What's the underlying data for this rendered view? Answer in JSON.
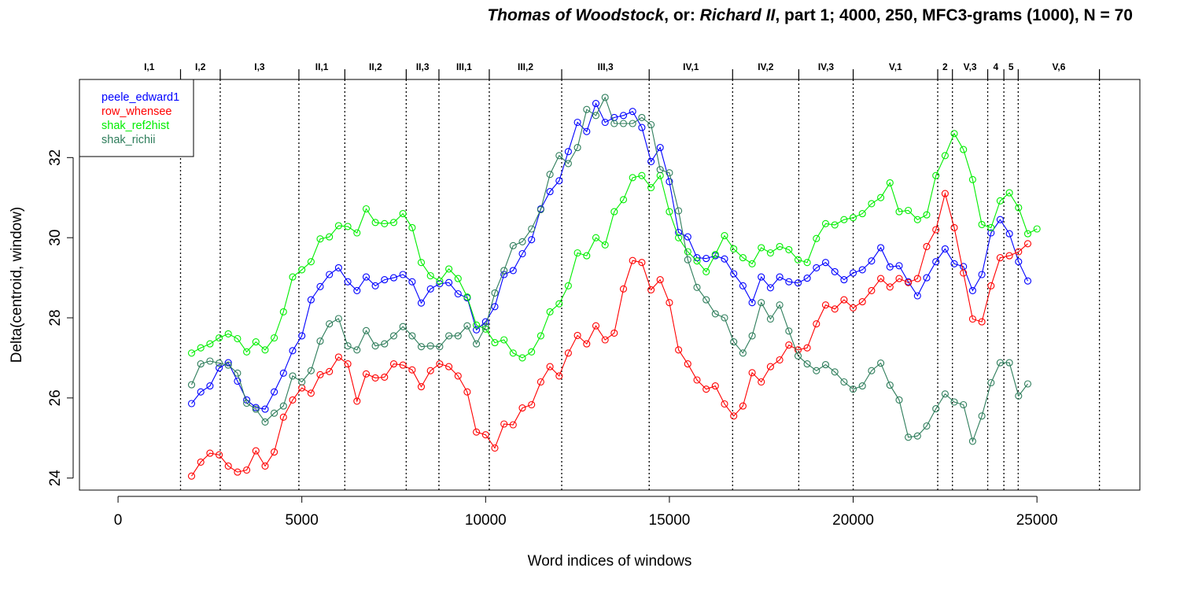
{
  "chart_data": {
    "type": "line",
    "title_parts": [
      {
        "text": "Thomas of Woodstock",
        "italic": true
      },
      {
        "text": ", or: ",
        "italic": false
      },
      {
        "text": "Richard II",
        "italic": true
      },
      {
        "text": ", part 1; 4000, 250, MFC3-grams (1000), N = 70",
        "italic": false
      }
    ],
    "xlabel": "Word indices of windows",
    "ylabel": "Delta(centroid, window)",
    "xlim": [
      -1050,
      27800
    ],
    "ylim": [
      23.7,
      33.95
    ],
    "x_ticks": [
      0,
      5000,
      10000,
      15000,
      20000,
      25000
    ],
    "y_ticks": [
      24,
      26,
      28,
      30,
      32
    ],
    "legend_position": "top-left",
    "scene_boundaries": [
      1700,
      2780,
      4920,
      6170,
      7840,
      8730,
      10100,
      12070,
      14450,
      16720,
      18520,
      20000,
      22300,
      22700,
      23660,
      24100,
      24490,
      26700
    ],
    "scene_labels": [
      {
        "label": "I,1",
        "x": 850
      },
      {
        "label": "I,2",
        "x": 2240
      },
      {
        "label": "I,3",
        "x": 3850
      },
      {
        "label": "II,1",
        "x": 5545
      },
      {
        "label": "II,2",
        "x": 7005
      },
      {
        "label": "II,3",
        "x": 8285
      },
      {
        "label": "III,1",
        "x": 9415
      },
      {
        "label": "III,2",
        "x": 11085
      },
      {
        "label": "III,3",
        "x": 13260
      },
      {
        "label": "IV,1",
        "x": 15585
      },
      {
        "label": "IV,2",
        "x": 17620
      },
      {
        "label": "IV,3",
        "x": 19260
      },
      {
        "label": "V,1",
        "x": 21150
      },
      {
        "label": "2",
        "x": 22500
      },
      {
        "label": "V,3",
        "x": 23180
      },
      {
        "label": "4",
        "x": 23880
      },
      {
        "label": "5",
        "x": 24295
      },
      {
        "label": "V,6",
        "x": 25595
      }
    ],
    "x_start": 2000,
    "x_step": 250,
    "series": [
      {
        "name": "peele_edward1",
        "color": "#0000ff",
        "values": [
          25.86,
          26.15,
          26.3,
          26.75,
          26.88,
          26.42,
          25.95,
          25.76,
          25.72,
          26.15,
          26.62,
          27.18,
          27.55,
          28.45,
          28.78,
          29.08,
          29.25,
          28.9,
          28.68,
          29.02,
          28.8,
          28.95,
          29.0,
          29.08,
          28.9,
          28.37,
          28.72,
          28.85,
          28.88,
          28.6,
          28.5,
          27.7,
          27.9,
          28.28,
          29.08,
          29.18,
          29.6,
          29.95,
          30.72,
          31.15,
          31.42,
          32.15,
          32.88,
          32.65,
          33.35,
          32.88,
          33.0,
          33.05,
          33.15,
          32.75,
          31.9,
          32.25,
          31.4,
          30.13,
          30.02,
          29.5,
          29.48,
          29.55,
          29.47,
          29.1,
          28.8,
          28.38,
          29.02,
          28.75,
          29.02,
          28.9,
          28.87,
          28.99,
          29.25,
          29.38,
          29.15,
          28.95,
          29.12,
          29.2,
          29.42,
          29.75,
          29.27,
          29.3,
          28.9,
          28.55,
          29.0,
          29.4,
          29.72,
          29.35,
          29.28,
          28.68,
          29.08,
          30.12,
          30.45,
          30.1,
          29.4,
          28.92
        ]
      },
      {
        "name": "row_whensee",
        "color": "#ff0000",
        "values": [
          24.05,
          24.4,
          24.62,
          24.58,
          24.3,
          24.15,
          24.2,
          24.68,
          24.3,
          24.65,
          25.52,
          25.95,
          26.25,
          26.12,
          26.58,
          26.66,
          27.02,
          26.85,
          25.92,
          26.6,
          26.5,
          26.52,
          26.85,
          26.82,
          26.7,
          26.28,
          26.68,
          26.85,
          26.78,
          26.55,
          26.15,
          25.15,
          25.08,
          24.75,
          25.35,
          25.33,
          25.75,
          25.83,
          26.4,
          26.78,
          26.55,
          27.12,
          27.56,
          27.35,
          27.8,
          27.45,
          27.62,
          28.72,
          29.43,
          29.38,
          28.7,
          28.95,
          28.38,
          27.2,
          26.85,
          26.45,
          26.22,
          26.3,
          25.85,
          25.55,
          25.8,
          26.63,
          26.4,
          26.78,
          26.95,
          27.32,
          27.2,
          27.25,
          27.85,
          28.32,
          28.22,
          28.45,
          28.25,
          28.4,
          28.68,
          28.98,
          28.77,
          28.98,
          28.88,
          28.98,
          29.78,
          30.2,
          31.1,
          30.25,
          29.12,
          27.97,
          27.9,
          28.8,
          29.5,
          29.55,
          29.65,
          29.85
        ]
      },
      {
        "name": "shak_ref2hist",
        "color": "#00ee00",
        "values": [
          27.12,
          27.25,
          27.35,
          27.5,
          27.6,
          27.48,
          27.15,
          27.4,
          27.2,
          27.5,
          28.15,
          29.02,
          29.2,
          29.4,
          29.97,
          30.02,
          30.3,
          30.28,
          30.12,
          30.72,
          30.38,
          30.35,
          30.38,
          30.6,
          30.25,
          29.38,
          29.05,
          28.92,
          29.22,
          28.98,
          28.52,
          27.82,
          27.72,
          27.38,
          27.45,
          27.12,
          27.0,
          27.15,
          27.55,
          28.15,
          28.35,
          28.8,
          29.62,
          29.55,
          30.0,
          29.82,
          30.65,
          30.95,
          31.5,
          31.55,
          31.25,
          31.55,
          30.65,
          30.0,
          29.65,
          29.42,
          29.15,
          29.58,
          30.05,
          29.72,
          29.5,
          29.35,
          29.75,
          29.62,
          29.78,
          29.7,
          29.45,
          29.38,
          29.98,
          30.35,
          30.32,
          30.45,
          30.5,
          30.6,
          30.85,
          31.0,
          31.37,
          30.65,
          30.68,
          30.45,
          30.57,
          31.55,
          32.05,
          32.6,
          32.2,
          31.45,
          30.33,
          30.25,
          30.92,
          31.12,
          30.75,
          30.1,
          30.22
        ]
      },
      {
        "name": "shak_richii",
        "color": "#2e7d5b",
        "values": [
          26.33,
          26.85,
          26.92,
          26.87,
          26.82,
          26.62,
          25.87,
          25.72,
          25.4,
          25.62,
          25.8,
          26.55,
          26.4,
          26.68,
          27.42,
          27.85,
          27.98,
          27.3,
          27.2,
          27.68,
          27.3,
          27.35,
          27.55,
          27.78,
          27.55,
          27.28,
          27.3,
          27.28,
          27.55,
          27.55,
          27.8,
          27.35,
          27.78,
          28.62,
          29.18,
          29.8,
          29.9,
          30.22,
          30.7,
          31.58,
          32.05,
          31.85,
          32.25,
          33.2,
          33.05,
          33.5,
          32.85,
          32.85,
          32.85,
          33.0,
          32.82,
          31.7,
          31.62,
          30.67,
          29.45,
          28.76,
          28.45,
          28.1,
          28.0,
          27.4,
          27.12,
          27.55,
          28.38,
          27.97,
          28.32,
          27.67,
          27.05,
          26.85,
          26.68,
          26.83,
          26.65,
          26.4,
          26.22,
          26.3,
          26.68,
          26.87,
          26.32,
          25.95,
          25.02,
          25.05,
          25.3,
          25.73,
          26.1,
          25.9,
          25.83,
          24.92,
          25.55,
          26.38,
          26.88,
          26.88,
          26.05,
          26.35
        ]
      }
    ]
  }
}
